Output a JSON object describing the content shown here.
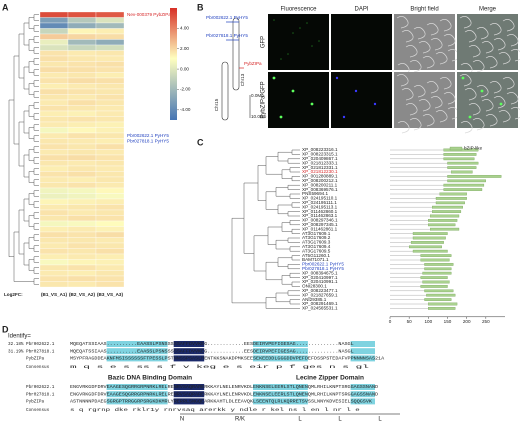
{
  "panels": {
    "a": "A",
    "b": "B",
    "c": "C",
    "d": "D"
  },
  "heatmap": {
    "columns": [
      "(B1_VS_A1)",
      "(B2_VS_A2)",
      "(B3_VS_A3)"
    ],
    "legend_title": "Log2FC:",
    "clim": [
      -5,
      6
    ],
    "colorbar_ticks": [
      {
        "value": 4,
        "label": "4.00"
      },
      {
        "value": 2,
        "label": "2.00"
      },
      {
        "value": 0,
        "label": "0.00"
      },
      {
        "value": -2,
        "label": "-2.00"
      },
      {
        "value": -4,
        "label": "-4.00"
      }
    ],
    "rows": [
      {
        "label": "Nev-000379 PybZIPa",
        "color": "#d62728",
        "values": [
          5.2,
          5.0,
          4.8
        ]
      },
      {
        "label": null,
        "values": [
          -3.5,
          -2.0,
          -1.0
        ]
      },
      {
        "label": null,
        "values": [
          -4.2,
          -3.0,
          -2.5
        ]
      },
      {
        "label": null,
        "values": [
          -1.5,
          0.3,
          0.5
        ]
      },
      {
        "label": null,
        "values": [
          1.5,
          1.2,
          1.0
        ]
      },
      {
        "label": null,
        "values": [
          -0.6,
          -2.5,
          -3.0
        ]
      },
      {
        "label": null,
        "values": [
          -1.0,
          -1.5,
          -1.2
        ]
      },
      {
        "label": null,
        "values": [
          0.8,
          0.6,
          0.7
        ]
      },
      {
        "label": null,
        "values": [
          0.9,
          0.7,
          0.6
        ]
      },
      {
        "label": null,
        "values": [
          0.7,
          0.8,
          0.9
        ]
      },
      {
        "label": null,
        "values": [
          1.0,
          0.9,
          0.8
        ]
      },
      {
        "label": null,
        "values": [
          0.6,
          0.7,
          0.5
        ]
      },
      {
        "label": null,
        "values": [
          0.8,
          1.0,
          0.9
        ]
      },
      {
        "label": null,
        "values": [
          0.5,
          0.6,
          0.7
        ]
      },
      {
        "label": null,
        "values": [
          0.9,
          0.8,
          0.7
        ]
      },
      {
        "label": null,
        "values": [
          0.7,
          0.6,
          0.8
        ]
      },
      {
        "label": null,
        "values": [
          0.6,
          0.9,
          0.7
        ]
      },
      {
        "label": null,
        "values": [
          0.8,
          0.7,
          0.6
        ]
      },
      {
        "label": null,
        "values": [
          0.5,
          0.4,
          0.6
        ]
      },
      {
        "label": null,
        "values": [
          0.7,
          0.8,
          0.7
        ]
      },
      {
        "label": null,
        "values": [
          0.6,
          0.5,
          0.4
        ]
      },
      {
        "label": null,
        "values": [
          -0.3,
          0.2,
          0.4
        ]
      },
      {
        "label": "Pbr002622.1 PyHY5",
        "color": "#1f3fbf",
        "values": [
          0.6,
          0.8,
          0.7
        ]
      },
      {
        "label": "Pbr027818.1 PyHY5",
        "color": "#1f3fbf",
        "values": [
          0.7,
          0.6,
          0.5
        ]
      },
      {
        "label": null,
        "values": [
          0.8,
          0.7,
          0.9
        ]
      },
      {
        "label": null,
        "values": [
          0.6,
          0.7,
          0.6
        ]
      },
      {
        "label": null,
        "values": [
          0.9,
          1.0,
          0.8
        ]
      },
      {
        "label": null,
        "values": [
          0.7,
          0.6,
          0.7
        ]
      },
      {
        "label": null,
        "values": [
          0.5,
          0.7,
          0.6
        ]
      },
      {
        "label": null,
        "values": [
          0.8,
          0.9,
          0.7
        ]
      },
      {
        "label": null,
        "values": [
          0.6,
          0.5,
          0.7
        ]
      },
      {
        "label": null,
        "values": [
          0.7,
          0.8,
          0.6
        ]
      },
      {
        "label": null,
        "values": [
          -0.4,
          -0.3,
          0.2
        ]
      },
      {
        "label": null,
        "values": [
          -0.5,
          -0.4,
          -0.2
        ]
      },
      {
        "label": null,
        "values": [
          0.3,
          0.4,
          0.5
        ]
      },
      {
        "label": null,
        "values": [
          0.6,
          0.7,
          0.8
        ]
      },
      {
        "label": null,
        "values": [
          0.8,
          0.6,
          0.7
        ]
      },
      {
        "label": null,
        "values": [
          0.7,
          0.9,
          0.8
        ]
      },
      {
        "label": null,
        "values": [
          -0.3,
          -0.2,
          0.1
        ]
      },
      {
        "label": null,
        "values": [
          0.5,
          0.6,
          0.4
        ]
      },
      {
        "label": null,
        "values": [
          0.9,
          0.8,
          1.0
        ]
      },
      {
        "label": null,
        "values": [
          0.7,
          0.7,
          0.6
        ]
      },
      {
        "label": null,
        "values": [
          0.6,
          0.8,
          0.7
        ]
      },
      {
        "label": null,
        "values": [
          0.8,
          0.7,
          0.9
        ]
      },
      {
        "label": null,
        "values": [
          0.5,
          0.6,
          0.5
        ]
      },
      {
        "label": null,
        "values": [
          -0.2,
          0.3,
          0.4
        ]
      },
      {
        "label": null,
        "values": [
          0.7,
          0.8,
          0.6
        ]
      },
      {
        "label": null,
        "values": [
          0.6,
          0.5,
          0.7
        ]
      },
      {
        "label": null,
        "values": [
          0.8,
          0.9,
          0.8
        ]
      },
      {
        "label": null,
        "values": [
          0.7,
          0.6,
          0.8
        ]
      }
    ]
  },
  "chromosome": {
    "gene1": "Pbr002622.1 PyHY5",
    "gene2": "Pbr027818.1 PyHY5",
    "gene3": "PybZIPa",
    "chr_a": "Chr13",
    "chr_b": "Chr15",
    "scale_top": "0.0Mb",
    "scale_bottom": "10.0Mb"
  },
  "microscopy": {
    "columns": [
      "Fluorescence",
      "DAPI",
      "Bright field",
      "Merge"
    ],
    "rows": [
      "GFP",
      "PybZIPa-GFP"
    ]
  },
  "tree": {
    "legend": "bZIP-like",
    "xlim": [
      0,
      300
    ],
    "xticks": [
      0,
      50,
      100,
      150,
      200,
      250
    ],
    "leaves": [
      {
        "label": "XP_008223316.1",
        "start": 140,
        "end": 230
      },
      {
        "label": "XP_008223315.1",
        "start": 140,
        "end": 225
      },
      {
        "label": "XP_020409867.1",
        "start": 140,
        "end": 220
      },
      {
        "label": "XP_021812333.1",
        "start": 150,
        "end": 230
      },
      {
        "label": "XP_021812331.1",
        "start": 150,
        "end": 225
      },
      {
        "label": "XP_021812230.1",
        "color": "#d62728",
        "start": 160,
        "end": 215
      },
      {
        "label": "XP_001280889.1",
        "start": 150,
        "end": 290
      },
      {
        "label": "XP_008200212.1",
        "start": 150,
        "end": 250
      },
      {
        "label": "XP_008200211.1",
        "start": 140,
        "end": 245
      },
      {
        "label": "XP_008369576.1",
        "start": 140,
        "end": 240
      },
      {
        "label": "PNS59694.1",
        "start": 130,
        "end": 200
      },
      {
        "label": "XP_024195110.1",
        "start": 120,
        "end": 200
      },
      {
        "label": "XP_024195111.1",
        "start": 120,
        "end": 195
      },
      {
        "label": "XP_024195113.1",
        "start": 110,
        "end": 190
      },
      {
        "label": "XP_011462860.1",
        "start": 110,
        "end": 185
      },
      {
        "label": "XP_011462863.1",
        "start": 105,
        "end": 180
      },
      {
        "label": "XP_008297346.1",
        "start": 100,
        "end": 175
      },
      {
        "label": "XP_008297345.1",
        "start": 100,
        "end": 170
      },
      {
        "label": "XP_011462861.1",
        "start": 105,
        "end": 180
      },
      {
        "label": "AT3G17609.1",
        "start": 60,
        "end": 150
      },
      {
        "label": "AT3G17609.2",
        "start": 60,
        "end": 145
      },
      {
        "label": "AT3G17609.3",
        "start": 55,
        "end": 140
      },
      {
        "label": "AT3G17609.4",
        "start": 50,
        "end": 135
      },
      {
        "label": "AT3G17609.5",
        "start": 60,
        "end": 150
      },
      {
        "label": "AT5G11260.1",
        "start": 80,
        "end": 160
      },
      {
        "label": "BAM71071.1",
        "start": 80,
        "end": 155
      },
      {
        "label": "Pbr002622.1 PyHY5",
        "color": "#1f3fbf",
        "start": 90,
        "end": 165
      },
      {
        "label": "Pbr027818.1 PyHY5",
        "color": "#1f3fbf",
        "start": 90,
        "end": 160
      },
      {
        "label": "XP_008394675.1",
        "start": 85,
        "end": 160
      },
      {
        "label": "XP_020410997.1",
        "start": 80,
        "end": 150
      },
      {
        "label": "XP_020410991.1",
        "start": 85,
        "end": 155
      },
      {
        "label": "ONI28300.1",
        "start": 80,
        "end": 150
      },
      {
        "label": "XP_008223477.1",
        "start": 90,
        "end": 165
      },
      {
        "label": "XP_021827659.1",
        "start": 95,
        "end": 170
      },
      {
        "label": "ANI29385.1",
        "start": 90,
        "end": 160
      },
      {
        "label": "XP_008291469.1",
        "start": 100,
        "end": 175
      },
      {
        "label": "XP_024565531.1",
        "start": 100,
        "end": 170
      }
    ]
  },
  "alignment": {
    "identity_title": "Identify=",
    "block1": [
      {
        "id": "32.18%",
        "name": "Pbr002622.1",
        "seq": "MQEQATSSIAAS..........EAASSLPSNSSSSSAFFDVVKEG............EESDEIRVPEFIGESAG..............NASGL"
      },
      {
        "id": "31.19%",
        "name": "Pbr027818.1",
        "seq": "MQEQATSSIAAS..........EAASSLPSNSSSSSAFFDVVKEG............EESDEIRVPEFIGESAG..............NASGL"
      },
      {
        "name": "PybZIPa",
        "seq": "MSYPFRAGDDEAKNFMSISSSSSSFTPESSLPSTNNSSPSASLHENTKKSNAKDPMKSEESEKEEDDLGGGDDVPEFDEFDSSPSTEDAFVPPNNNNSAS21A"
      },
      {
        "name": "Consensus",
        "seq": "m   q    s         e   s       ss s  f  v keg          e s eir p         f  ges             n s gl"
      }
    ],
    "domain1": "Bazic DNA Binding Domain",
    "domain2": "Lecine Zipper Domain",
    "block2": [
      {
        "name": "Pbr002622.1",
        "seq": "ENGVRKGDFDRVEAAGESQGRRGRPNRKLRELRENRVSAQRARERKKAYLNELENRVKDLENKNSELEERLSTLQNENQMLRHILKNPTSRGGAGSSNAND"
      },
      {
        "name": "Pbr027818.1",
        "seq": "ENGVRKGDFDRVEAAGESQGRRGRPNRKLRELRENRVSAQRARERKKAYLNELENRVKDLENKNSELEERLSTLQNENQMLRHILKNPTSRGGAGSSNAND"
      },
      {
        "name": "PybZIPa",
        "seq": "ASTNNNNPDAEGSGRGPTRRGGRPSRGKDKMRLYRERRLSNGQEARKKAHTLDLEEAVQKLSEENTQLRLKQRRETSVSSLNNYKDVESIELSQQGSVK"
      },
      {
        "name": "Consensus",
        "seq": "    s        q   rgrnp dke  rklr1y rnrvsaq arerkk y ndle r kel   ns l en   l   nr l           e"
      }
    ],
    "motif": [
      "N",
      "R/K",
      "L",
      "L",
      "L"
    ]
  }
}
